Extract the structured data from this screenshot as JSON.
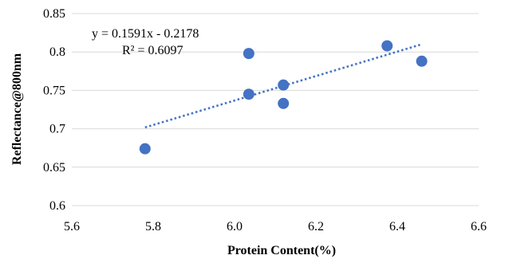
{
  "chart_data": {
    "type": "scatter",
    "title": "",
    "xlabel": "Protein Content(%)",
    "ylabel": "Reflectance@800nm",
    "xlim": [
      5.6,
      6.6
    ],
    "ylim": [
      0.6,
      0.85
    ],
    "xticks": [
      5.6,
      5.8,
      6.0,
      6.2,
      6.4,
      6.6
    ],
    "yticks": [
      0.6,
      0.65,
      0.7,
      0.75,
      0.8,
      0.85
    ],
    "xtick_labels": [
      "5.6",
      "5.8",
      "6.0",
      "6.2",
      "6.4",
      "6.6"
    ],
    "ytick_labels": [
      "0.6",
      "0.65",
      "0.7",
      "0.75",
      "0.8",
      "0.85"
    ],
    "grid": "horizontal",
    "legend": "none",
    "marker_color": "#4472c4",
    "trendline_color": "#4472c4",
    "series": [
      {
        "points": [
          {
            "x": 5.78,
            "y": 0.674
          },
          {
            "x": 6.035,
            "y": 0.798
          },
          {
            "x": 6.035,
            "y": 0.745
          },
          {
            "x": 6.12,
            "y": 0.757
          },
          {
            "x": 6.12,
            "y": 0.733
          },
          {
            "x": 6.375,
            "y": 0.808
          },
          {
            "x": 6.46,
            "y": 0.788
          }
        ]
      }
    ],
    "trendline": {
      "type": "linear",
      "slope": 0.1591,
      "intercept": -0.2178,
      "x_range": [
        5.78,
        6.46
      ],
      "equation": "y = 0.1591x - 0.2178",
      "r_squared": "R² = 0.6097"
    }
  }
}
